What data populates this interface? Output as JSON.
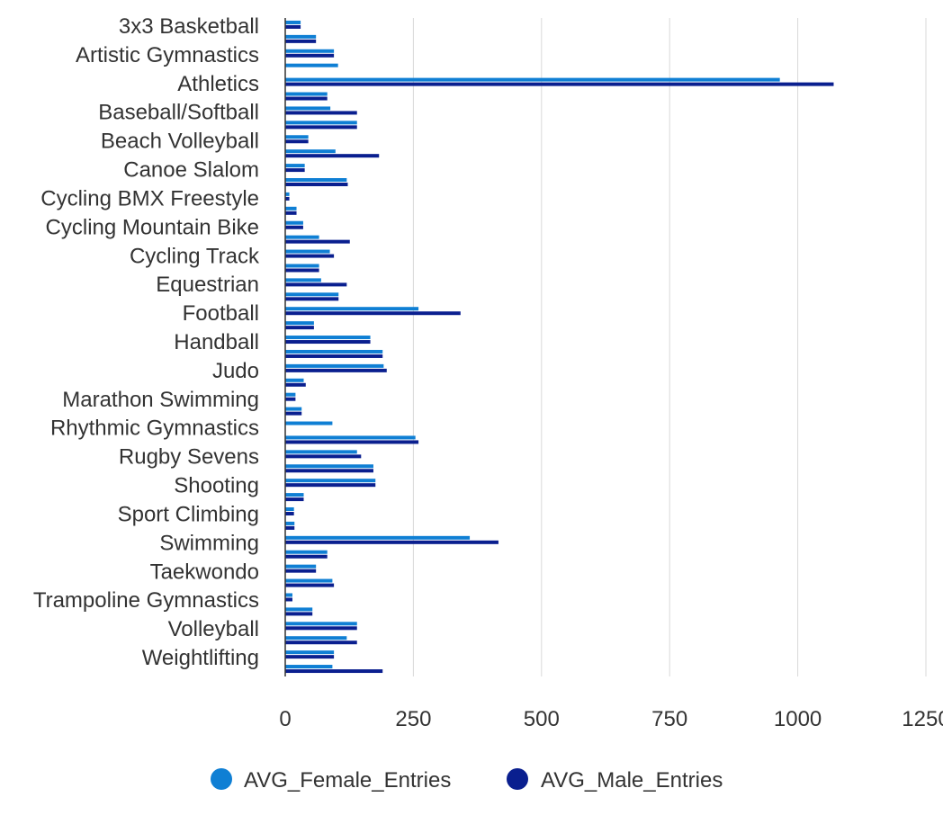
{
  "chart_data": {
    "type": "bar",
    "orientation": "horizontal",
    "title": "",
    "xlabel": "",
    "ylabel": "",
    "xlim": [
      0,
      1250
    ],
    "xticks": [
      "0",
      "250",
      "500",
      "750",
      "1000",
      "1250"
    ],
    "grid": true,
    "legend_position": "bottom",
    "labeled_categories": [
      "3x3 Basketball",
      "Artistic Gymnastics",
      "Athletics",
      "Baseball/Softball",
      "Beach Volleyball",
      "Canoe Slalom",
      "Cycling BMX Freestyle",
      "Cycling Mountain Bike",
      "Cycling Track",
      "Equestrian",
      "Football",
      "Handball",
      "Judo",
      "Marathon Swimming",
      "Rhythmic Gymnastics",
      "Rugby Sevens",
      "Shooting",
      "Sport Climbing",
      "Swimming",
      "Taekwondo",
      "Trampoline Gymnastics",
      "Volleyball",
      "Weightlifting"
    ],
    "series": [
      {
        "name": "AVG_Female_Entries",
        "color": "#0f7fd4",
        "values": [
          30,
          60,
          95,
          103,
          965,
          82,
          88,
          140,
          45,
          98,
          38,
          120,
          8,
          22,
          35,
          66,
          87,
          66,
          70,
          104,
          260,
          56,
          166,
          190,
          192,
          36,
          20,
          32,
          92,
          254,
          140,
          172,
          176,
          36,
          17,
          18,
          360,
          82,
          60,
          92,
          14,
          53,
          140,
          120,
          95,
          92
        ]
      },
      {
        "name": "AVG_Male_Entries",
        "color": "#0a1f8f",
        "values": [
          30,
          60,
          95,
          0,
          1070,
          82,
          140,
          140,
          45,
          183,
          38,
          122,
          8,
          22,
          35,
          126,
          95,
          66,
          120,
          104,
          342,
          56,
          166,
          190,
          198,
          40,
          20,
          32,
          0,
          260,
          148,
          172,
          176,
          36,
          17,
          18,
          416,
          82,
          60,
          95,
          14,
          53,
          140,
          140,
          95,
          190
        ]
      }
    ]
  }
}
